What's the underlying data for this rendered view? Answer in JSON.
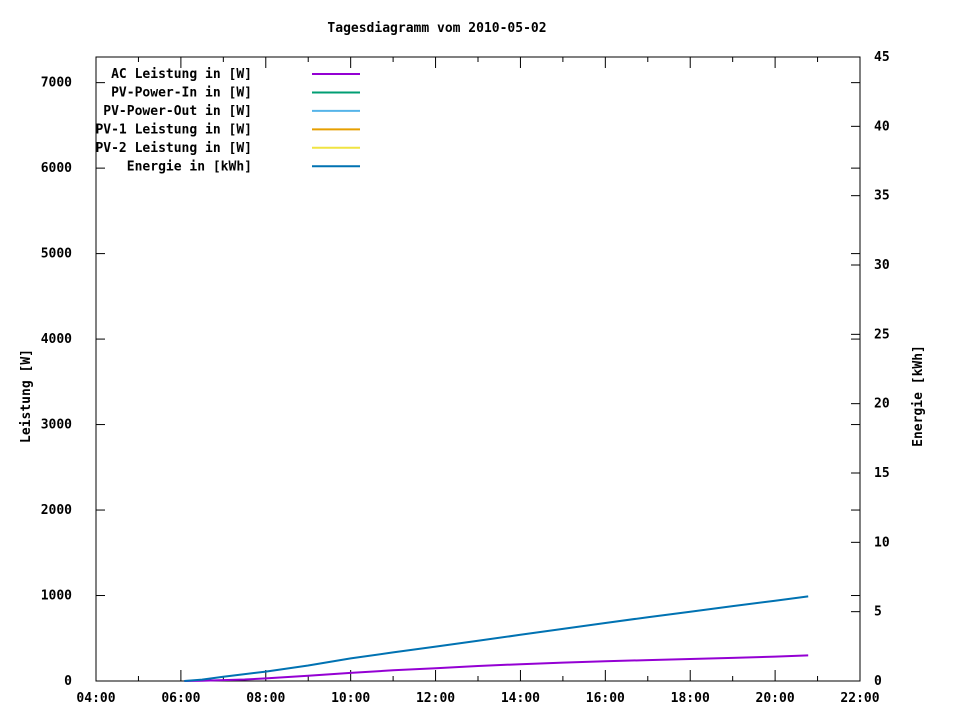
{
  "page": {
    "background": "#ffffff"
  },
  "chart_data": {
    "type": "line",
    "title": "Tagesdiagramm vom 2010-05-02",
    "x_axis": {
      "range_hours": [
        4,
        22
      ],
      "major_ticks": [
        {
          "hour": 4,
          "label": "04:00"
        },
        {
          "hour": 6,
          "label": "06:00"
        },
        {
          "hour": 8,
          "label": "08:00"
        },
        {
          "hour": 10,
          "label": "10:00"
        },
        {
          "hour": 12,
          "label": "12:00"
        },
        {
          "hour": 14,
          "label": "14:00"
        },
        {
          "hour": 16,
          "label": "16:00"
        },
        {
          "hour": 18,
          "label": "18:00"
        },
        {
          "hour": 20,
          "label": "20:00"
        },
        {
          "hour": 22,
          "label": "22:00"
        }
      ],
      "minor_tick_hours": [
        5,
        7,
        9,
        11,
        13,
        15,
        17,
        19,
        21
      ]
    },
    "y_left": {
      "label": "Leistung [W]",
      "ticks": [
        0,
        1000,
        2000,
        3000,
        4000,
        5000,
        6000,
        7000
      ],
      "range": [
        0,
        7300
      ]
    },
    "y_right": {
      "label": "Energie [kWh]",
      "ticks": [
        0,
        5,
        10,
        15,
        20,
        25,
        30,
        35,
        40,
        45
      ],
      "range": [
        0,
        45
      ]
    },
    "legend": [
      {
        "label": "AC Leistung in [W]",
        "color": "#9400d3"
      },
      {
        "label": "PV-Power-In in [W]",
        "color": "#009e73"
      },
      {
        "label": "PV-Power-Out in [W]",
        "color": "#56b4e9"
      },
      {
        "label": "PV-1 Leistung in [W]",
        "color": "#e69f00"
      },
      {
        "label": "PV-2 Leistung in [W]",
        "color": "#f0e442"
      },
      {
        "label": "Energie in [kWh]",
        "color": "#0072b2"
      }
    ],
    "series": [
      {
        "name": "AC Leistung in [W]",
        "color": "#9400d3",
        "axis": "left",
        "points": [
          [
            6.08,
            0
          ],
          [
            6.5,
            3
          ],
          [
            7,
            10
          ],
          [
            7.5,
            18
          ],
          [
            8,
            30
          ],
          [
            9,
            62
          ],
          [
            10,
            95
          ],
          [
            11,
            125
          ],
          [
            12,
            150
          ],
          [
            13,
            175
          ],
          [
            14,
            197
          ],
          [
            15,
            215
          ],
          [
            16,
            231
          ],
          [
            17,
            245
          ],
          [
            18,
            257
          ],
          [
            19,
            270
          ],
          [
            20,
            285
          ],
          [
            20.78,
            300
          ]
        ]
      },
      {
        "name": "Energie in [kWh]",
        "color": "#0072b2",
        "axis": "right",
        "points": [
          [
            6.08,
            0
          ],
          [
            6.5,
            0.1
          ],
          [
            7,
            0.3
          ],
          [
            8,
            0.68
          ],
          [
            9,
            1.12
          ],
          [
            10,
            1.63
          ],
          [
            11,
            2.06
          ],
          [
            12,
            2.48
          ],
          [
            13,
            2.9
          ],
          [
            14,
            3.33
          ],
          [
            15,
            3.76
          ],
          [
            16,
            4.18
          ],
          [
            17,
            4.6
          ],
          [
            18,
            5.0
          ],
          [
            19,
            5.4
          ],
          [
            20,
            5.79
          ],
          [
            20.78,
            6.1
          ]
        ]
      }
    ],
    "axis_color": "#000000",
    "grid": false,
    "legend_position": "top-left-inside"
  }
}
